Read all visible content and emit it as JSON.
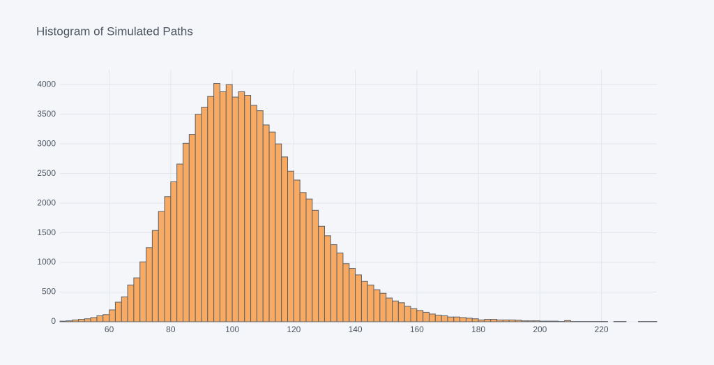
{
  "chart_data": {
    "type": "histogram",
    "title": "Histogram of Simulated Paths",
    "bins": [
      44,
      46,
      48,
      50,
      52,
      54,
      56,
      58,
      60,
      62,
      64,
      66,
      68,
      70,
      72,
      74,
      76,
      78,
      80,
      82,
      84,
      86,
      88,
      90,
      92,
      94,
      96,
      98,
      100,
      102,
      104,
      106,
      108,
      110,
      112,
      114,
      116,
      118,
      120,
      122,
      124,
      126,
      128,
      130,
      132,
      134,
      136,
      138,
      140,
      142,
      144,
      146,
      148,
      150,
      152,
      154,
      156,
      158,
      160,
      162,
      164,
      166,
      168,
      170,
      172,
      174,
      176,
      178,
      180,
      182,
      184,
      186,
      188,
      190,
      192,
      194,
      196,
      198,
      200,
      202,
      204,
      206,
      208,
      210,
      212,
      214,
      216,
      218,
      220,
      222,
      224,
      226,
      228,
      230,
      232,
      234,
      236,
      238
    ],
    "values": [
      10,
      15,
      30,
      40,
      50,
      70,
      100,
      120,
      200,
      330,
      420,
      620,
      740,
      1010,
      1250,
      1540,
      1860,
      2110,
      2360,
      2660,
      3010,
      3160,
      3500,
      3620,
      3800,
      4020,
      3880,
      4000,
      3790,
      3880,
      3820,
      3650,
      3560,
      3320,
      3200,
      3000,
      2780,
      2540,
      2390,
      2180,
      2070,
      1880,
      1610,
      1450,
      1300,
      1160,
      980,
      900,
      790,
      680,
      620,
      540,
      480,
      400,
      350,
      320,
      260,
      220,
      190,
      160,
      130,
      110,
      100,
      80,
      80,
      70,
      60,
      50,
      30,
      40,
      40,
      30,
      30,
      30,
      25,
      15,
      15,
      15,
      10,
      10,
      10,
      5,
      20,
      5,
      5,
      5,
      5,
      5,
      5,
      0,
      5,
      5,
      0,
      0,
      5,
      5,
      5
    ],
    "color": "#f8aa62",
    "edge_color": "#5a5f66",
    "xlim": [
      44,
      238
    ],
    "xticks": [
      60,
      80,
      100,
      120,
      140,
      160,
      180,
      200,
      220
    ],
    "ylim": [
      0,
      4250
    ],
    "yticks": [
      0,
      500,
      1000,
      1500,
      2000,
      2500,
      3000,
      3500,
      4000
    ],
    "grid": true
  }
}
